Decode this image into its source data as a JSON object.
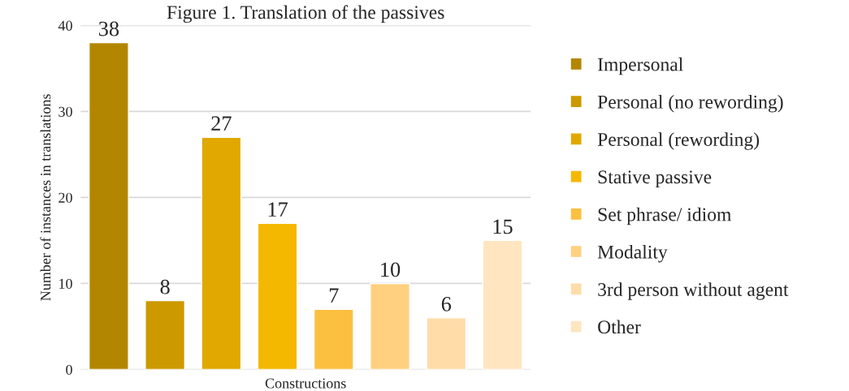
{
  "chart_data": {
    "type": "bar",
    "title": "Figure 1. Translation of the passives",
    "xlabel": "Constructions",
    "ylabel": "Number of instances in translations",
    "categories": [
      null
    ],
    "series": [
      {
        "name": "Impersonal",
        "color": "#b38600",
        "values": [
          38
        ]
      },
      {
        "name": "Personal (no rewording)",
        "color": "#cc9900",
        "values": [
          8
        ]
      },
      {
        "name": "Personal (rewording)",
        "color": "#e0a800",
        "values": [
          27
        ]
      },
      {
        "name": "Stative passive",
        "color": "#f5b800",
        "values": [
          17
        ]
      },
      {
        "name": "Set phrase/ idiom",
        "color": "#fcc040",
        "values": [
          7
        ]
      },
      {
        "name": "Modality",
        "color": "#ffd080",
        "values": [
          10
        ]
      },
      {
        "name": "3rd person without agent",
        "color": "#ffdca8",
        "values": [
          6
        ]
      },
      {
        "name": "Other",
        "color": "#ffe5c0",
        "values": [
          15
        ]
      }
    ],
    "ylim": [
      0,
      40
    ],
    "yticks": [
      0,
      10,
      20,
      30,
      40
    ],
    "grid": "y",
    "legend": "right",
    "data_labels": true
  }
}
